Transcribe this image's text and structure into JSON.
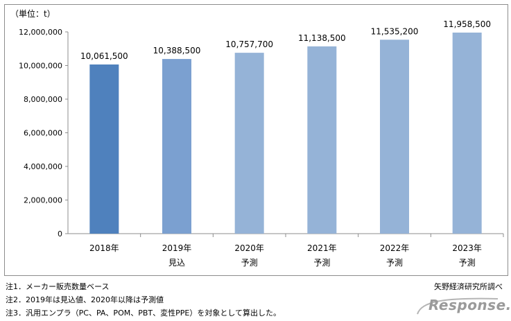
{
  "chart_data": {
    "type": "bar",
    "unit_label": "（単位：t）",
    "categories": [
      "2018年",
      "2019年",
      "2020年",
      "2021年",
      "2022年",
      "2023年"
    ],
    "sub_labels": [
      "",
      "見込",
      "予測",
      "予測",
      "予測",
      "予測"
    ],
    "values": [
      10061500,
      10388500,
      10757700,
      11138500,
      11535200,
      11958500
    ],
    "value_labels": [
      "10,061,500",
      "10,388,500",
      "10,757,700",
      "11,138,500",
      "11,535,200",
      "11,958,500"
    ],
    "ylim": [
      0,
      12000000
    ],
    "yticks": [
      0,
      2000000,
      4000000,
      6000000,
      8000000,
      10000000,
      12000000
    ],
    "ytick_labels": [
      "0",
      "2,000,000",
      "4,000,000",
      "6,000,000",
      "8,000,000",
      "10,000,000",
      "12,000,000"
    ],
    "grid": false,
    "colors": {
      "actual": "#4f81bd",
      "estimate": "#7ba0d0",
      "forecast": "#95b3d7"
    },
    "bar_color_keys": [
      "actual",
      "estimate",
      "forecast",
      "forecast",
      "forecast",
      "forecast"
    ]
  },
  "notes": [
    "注1．メーカー販売数量ベース",
    "注2．2019年は見込値、2020年以降は予測値",
    "注3．汎用エンプラ（PC、PA、POM、PBT、変性PPE）を対象として算出した。"
  ],
  "source": "矢野経済研究所調べ",
  "logo_text": "Response."
}
